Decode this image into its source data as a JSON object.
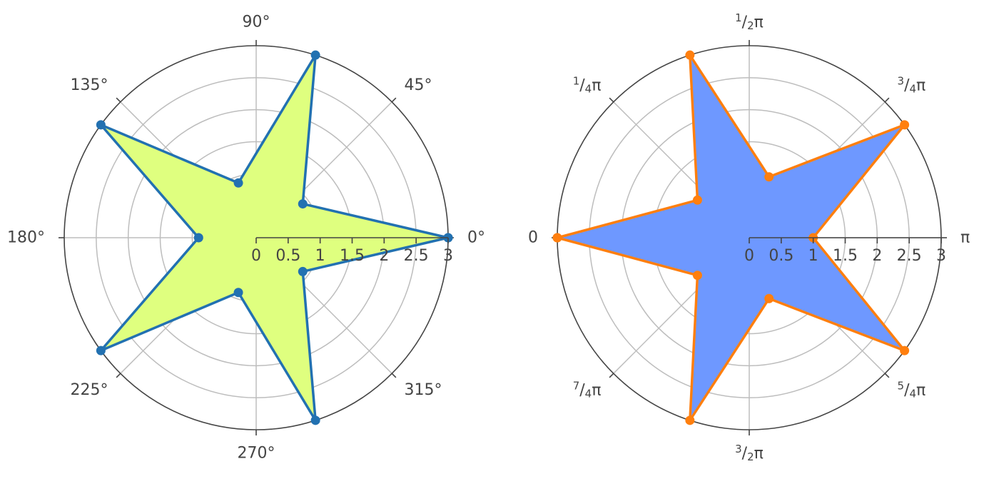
{
  "chart_data": [
    {
      "type": "polar",
      "angular_unit": "degrees",
      "angular_direction": "counterclockwise",
      "rotation": 0,
      "radial_range": [
        0,
        3
      ],
      "radial_ticks": [
        "0",
        "0.5",
        "1",
        "1.5",
        "2",
        "2.5",
        "3"
      ],
      "angular_ticks": [
        {
          "angle": 0,
          "label": "0°"
        },
        {
          "angle": 45,
          "label": "45°"
        },
        {
          "angle": 90,
          "label": "90°"
        },
        {
          "angle": 135,
          "label": "135°"
        },
        {
          "angle": 180,
          "label": "180°"
        },
        {
          "angle": 225,
          "label": "225°"
        },
        {
          "angle": 270,
          "label": "270°"
        },
        {
          "angle": 315,
          "label": "315°"
        }
      ],
      "series": [
        {
          "marker": "circle",
          "r": [
            3,
            0.9,
            3,
            0.9,
            3,
            0.9,
            3,
            0.9,
            3,
            0.9,
            3
          ],
          "theta": [
            0,
            36,
            72,
            108,
            144,
            180,
            216,
            252,
            288,
            324,
            360
          ],
          "line_color": "#2271b1",
          "fill_color": "#dfff7f"
        }
      ]
    },
    {
      "type": "polar",
      "angular_unit": "radians",
      "angular_direction": "clockwise",
      "rotation": 180,
      "radial_range": [
        0,
        3
      ],
      "radial_ticks": [
        "0",
        "0.5",
        "1",
        "1.5",
        "2",
        "2.5",
        "3"
      ],
      "angular_ticks": [
        {
          "angle": 0,
          "num": "",
          "den": "",
          "sym": "0"
        },
        {
          "angle": 45,
          "num": "1",
          "den": "4",
          "sym": "π"
        },
        {
          "angle": 90,
          "num": "1",
          "den": "2",
          "sym": "π"
        },
        {
          "angle": 135,
          "num": "3",
          "den": "4",
          "sym": "π"
        },
        {
          "angle": 180,
          "num": "",
          "den": "",
          "sym": "π"
        },
        {
          "angle": 225,
          "num": "5",
          "den": "4",
          "sym": "π"
        },
        {
          "angle": 270,
          "num": "3",
          "den": "2",
          "sym": "π"
        },
        {
          "angle": 315,
          "num": "7",
          "den": "4",
          "sym": "π"
        }
      ],
      "series": [
        {
          "marker": "circle",
          "r": [
            3,
            1,
            3,
            1,
            3,
            1,
            3,
            1,
            3,
            1,
            3
          ],
          "theta": [
            0,
            36,
            72,
            108,
            144,
            180,
            216,
            252,
            288,
            324,
            360
          ],
          "line_color": "#ff7f0e",
          "fill_color": "#6e98ff"
        }
      ]
    }
  ]
}
